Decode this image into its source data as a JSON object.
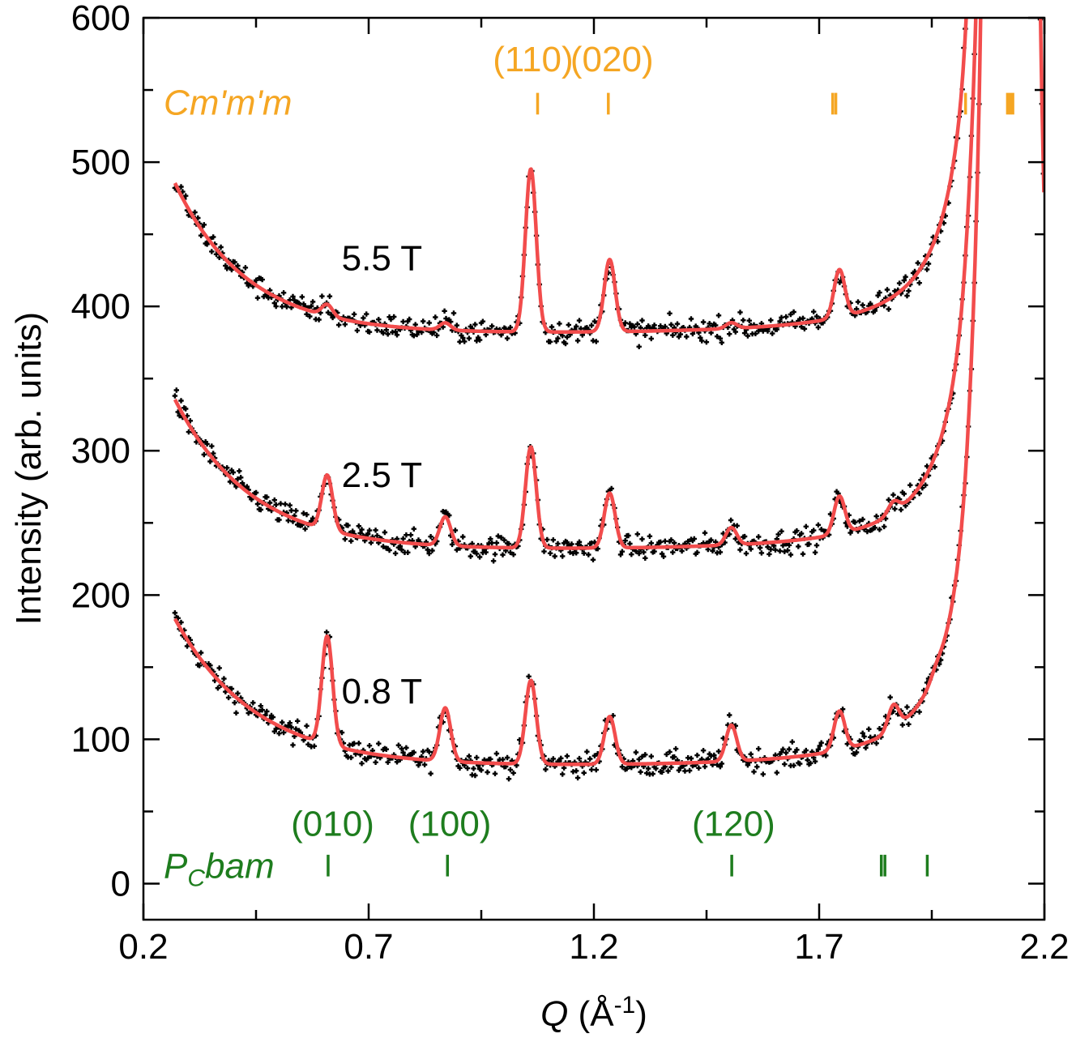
{
  "chart_data": {
    "type": "line",
    "title": "",
    "xlabel": "Q",
    "xlabel_unit_open": " (",
    "xlabel_unit_base": "Å",
    "xlabel_unit_sup": "-1",
    "xlabel_unit_close": ")",
    "ylabel": "Intensity (arb. units)",
    "xlim": [
      0.2,
      2.2
    ],
    "ylim": [
      -25,
      600
    ],
    "x_ticks": [
      0.2,
      0.7,
      1.2,
      1.7,
      2.2
    ],
    "x_tick_labels": [
      "0.2",
      "0.7",
      "1.2",
      "1.7",
      "2.2"
    ],
    "x_minor_ticks": [
      0.45,
      0.95,
      1.45,
      1.95
    ],
    "y_ticks": [
      0,
      100,
      200,
      300,
      400,
      500,
      600
    ],
    "y_tick_labels": [
      "0",
      "100",
      "200",
      "300",
      "400",
      "500",
      "600"
    ],
    "y_minor_ticks": [
      50,
      150,
      250,
      350,
      450,
      550
    ],
    "grid": false,
    "colors": {
      "fit": "#f24c4c",
      "data": "#000000",
      "cmm": "#f5a623",
      "pcbam": "#1e7d1e"
    },
    "model": {
      "host_peak_centers": [
        2.105,
        2.145
      ],
      "host_peak_amplitude": 9000,
      "host_peak_width": 0.01
    },
    "series": [
      {
        "name": "0.8 T",
        "label": "0.8 T",
        "label_x": 0.64,
        "label_y": 125,
        "baseline": 80,
        "decay_amplitude": 103,
        "decay_length": 0.18,
        "x_start": 0.27,
        "peaks": [
          {
            "q": 0.608,
            "height": 75
          },
          {
            "q": 0.87,
            "height": 37
          },
          {
            "q": 1.06,
            "height": 58
          },
          {
            "q": 1.235,
            "height": 33
          },
          {
            "q": 1.505,
            "height": 25
          },
          {
            "q": 1.745,
            "height": 27
          },
          {
            "q": 1.865,
            "height": 17
          },
          {
            "q": 1.96,
            "height": 4
          },
          {
            "q": 2.04,
            "height": 10
          }
        ]
      },
      {
        "name": "2.5 T",
        "label": "2.5 T",
        "label_x": 0.64,
        "label_y": 275,
        "baseline": 230,
        "decay_amplitude": 105,
        "decay_length": 0.17,
        "x_start": 0.27,
        "peaks": [
          {
            "q": 0.608,
            "height": 38
          },
          {
            "q": 0.87,
            "height": 20
          },
          {
            "q": 1.06,
            "height": 70
          },
          {
            "q": 1.235,
            "height": 38
          },
          {
            "q": 1.505,
            "height": 12
          },
          {
            "q": 1.745,
            "height": 26
          },
          {
            "q": 1.865,
            "height": 8
          },
          {
            "q": 2.04,
            "height": 12
          }
        ]
      },
      {
        "name": "5.5 T",
        "label": "5.5 T",
        "label_x": 0.64,
        "label_y": 425,
        "baseline": 380,
        "decay_amplitude": 105,
        "decay_length": 0.16,
        "x_start": 0.27,
        "peaks": [
          {
            "q": 0.608,
            "height": 8
          },
          {
            "q": 0.87,
            "height": 5
          },
          {
            "q": 1.06,
            "height": 113
          },
          {
            "q": 1.235,
            "height": 50
          },
          {
            "q": 1.505,
            "height": 4
          },
          {
            "q": 1.745,
            "height": 33
          },
          {
            "q": 2.04,
            "height": 25
          }
        ]
      }
    ],
    "phases": [
      {
        "name": "Cm'm'm",
        "color": "#f5a623",
        "label_x": 0.245,
        "label_y": 533,
        "tick_y": 535,
        "reflections": [
          1.075,
          1.232,
          1.73,
          1.737,
          2.025,
          2.118,
          2.124,
          2.13
        ],
        "labels": [
          {
            "text": "(110)",
            "x": 1.065,
            "y": 563
          },
          {
            "text": "(020)",
            "x": 1.24,
            "y": 563
          }
        ]
      },
      {
        "name_main": "P",
        "name_sub": "C",
        "name_rest": "bam",
        "color": "#1e7d1e",
        "label_x": 0.245,
        "label_y": 4,
        "tick_y": 7,
        "reflections": [
          0.61,
          0.875,
          1.506,
          1.838,
          1.846,
          1.94
        ],
        "labels": [
          {
            "text": "(010)",
            "x": 0.62,
            "y": 33
          },
          {
            "text": "(100)",
            "x": 0.88,
            "y": 33
          },
          {
            "text": "(120)",
            "x": 1.51,
            "y": 33
          }
        ]
      }
    ]
  }
}
